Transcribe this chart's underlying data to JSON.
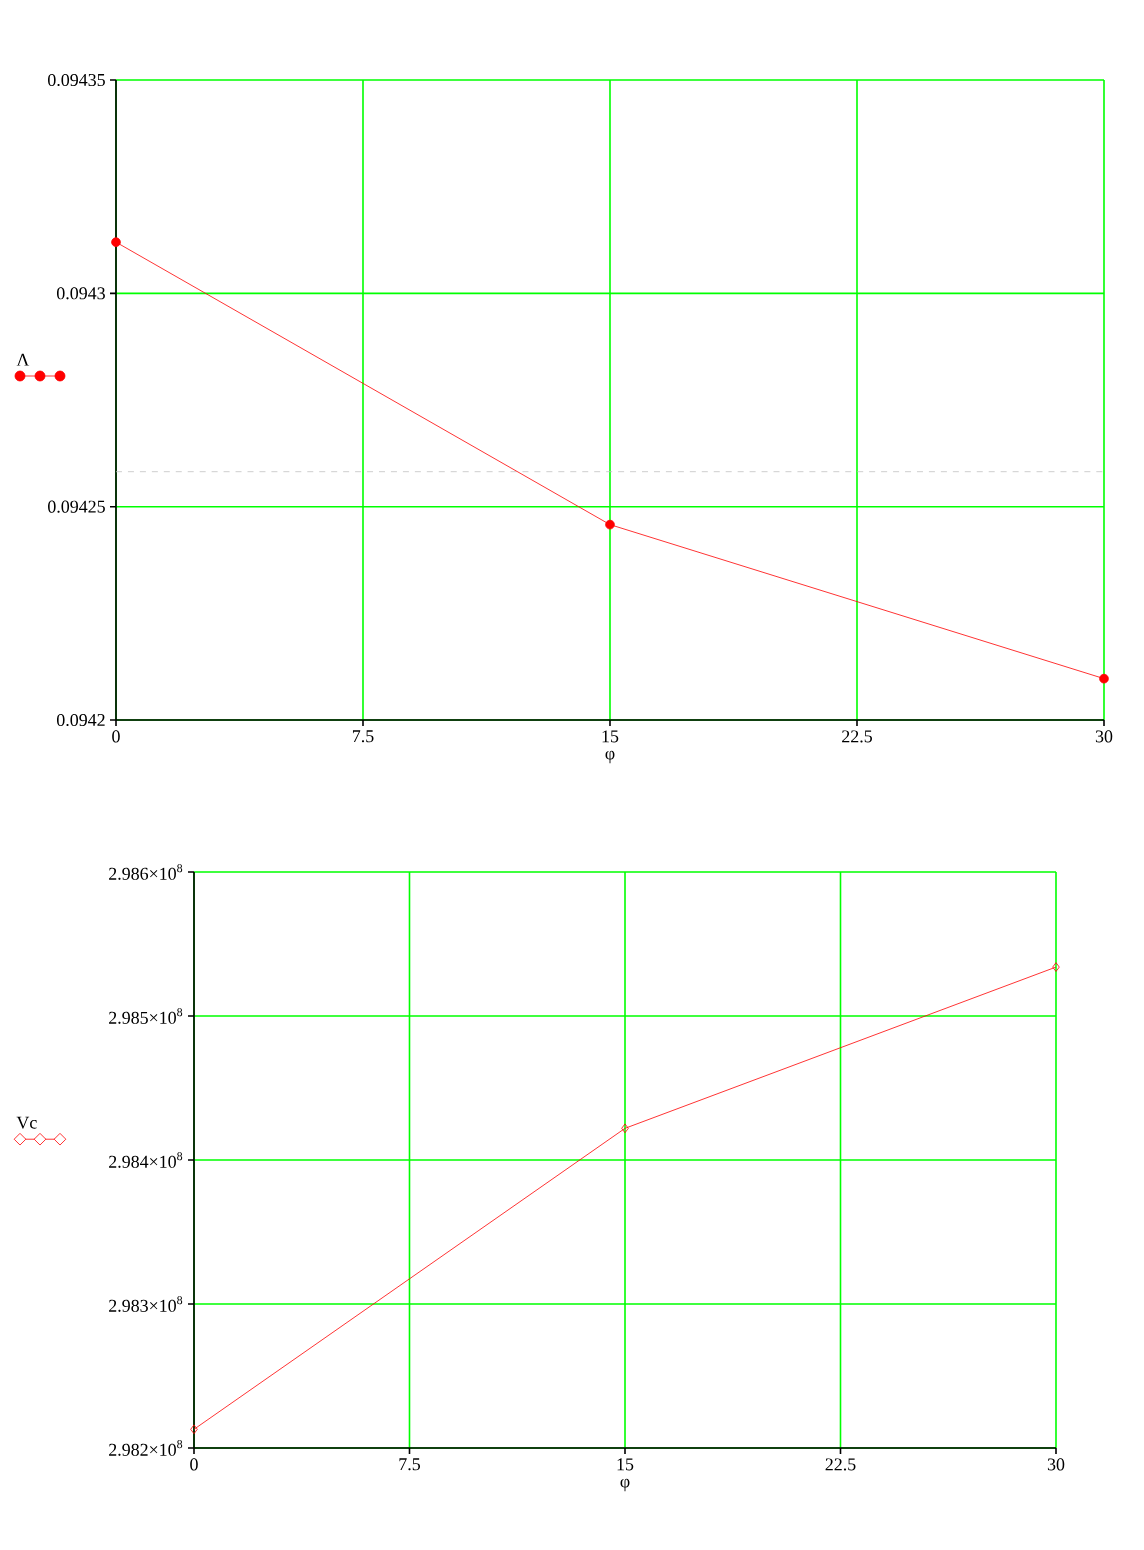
{
  "chart_data": [
    {
      "type": "line",
      "xlabel": "φ",
      "x": [
        0,
        15,
        30
      ],
      "series": [
        {
          "name": "Λ",
          "color": "#ff0000",
          "values": [
            0.094312,
            0.0942458,
            0.0942097
          ]
        }
      ],
      "xlim": [
        0,
        30
      ],
      "ylim": [
        0.0942,
        0.09435
      ],
      "xticks": [
        0,
        7.5,
        15,
        22.5,
        30
      ],
      "yticks": [
        0.0942,
        0.09425,
        0.0943,
        0.09435
      ],
      "grid": true,
      "legend": "left",
      "marker": "circle",
      "line_style": "solid",
      "ref_lines": [
        {
          "axis": "y",
          "value": 0.0942582,
          "color": "#c0c0c0",
          "line_style": "dashed"
        }
      ]
    },
    {
      "type": "line",
      "xlabel": "φ",
      "x": [
        0,
        15,
        30
      ],
      "series": [
        {
          "name": "Vc",
          "color": "#ff0000",
          "values": [
            298213000,
            298422000,
            298534000
          ]
        }
      ],
      "xlim": [
        0,
        30
      ],
      "ylim": [
        298200000,
        298600000
      ],
      "xticks": [
        0,
        7.5,
        15,
        22.5,
        30
      ],
      "yticks": [
        {
          "value": 298200000,
          "label": "2.982×10$^{8}$"
        },
        {
          "value": 298300000,
          "label": "2.983×10$^{8}$"
        },
        {
          "value": 298400000,
          "label": "2.984×10$^{8}$"
        },
        {
          "value": 298500000,
          "label": "2.985×10$^{8}$"
        },
        {
          "value": 298600000,
          "label": "2.986×10$^{8}$"
        }
      ],
      "grid": true,
      "legend": "left",
      "marker": "diamond",
      "line_style": "solid"
    }
  ]
}
